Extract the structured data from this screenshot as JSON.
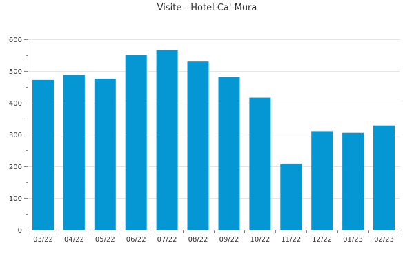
{
  "chart_data": {
    "type": "bar",
    "title": "Visite - Hotel Ca' Mura",
    "xlabel": "",
    "ylabel": "",
    "categories": [
      "03/22",
      "04/22",
      "05/22",
      "06/22",
      "07/22",
      "08/22",
      "09/22",
      "10/22",
      "11/22",
      "12/22",
      "01/23",
      "02/23"
    ],
    "values": [
      472,
      488,
      476,
      551,
      566,
      530,
      481,
      416,
      209,
      310,
      305,
      329
    ],
    "ylim": [
      0,
      600
    ],
    "yticks": [
      0,
      100,
      200,
      300,
      400,
      500,
      600
    ],
    "grid": true,
    "legend": "none",
    "colors": {
      "bar": "#0497D4",
      "grid": "#E6E6E6",
      "axis": "#888888",
      "text": "#333333"
    }
  }
}
